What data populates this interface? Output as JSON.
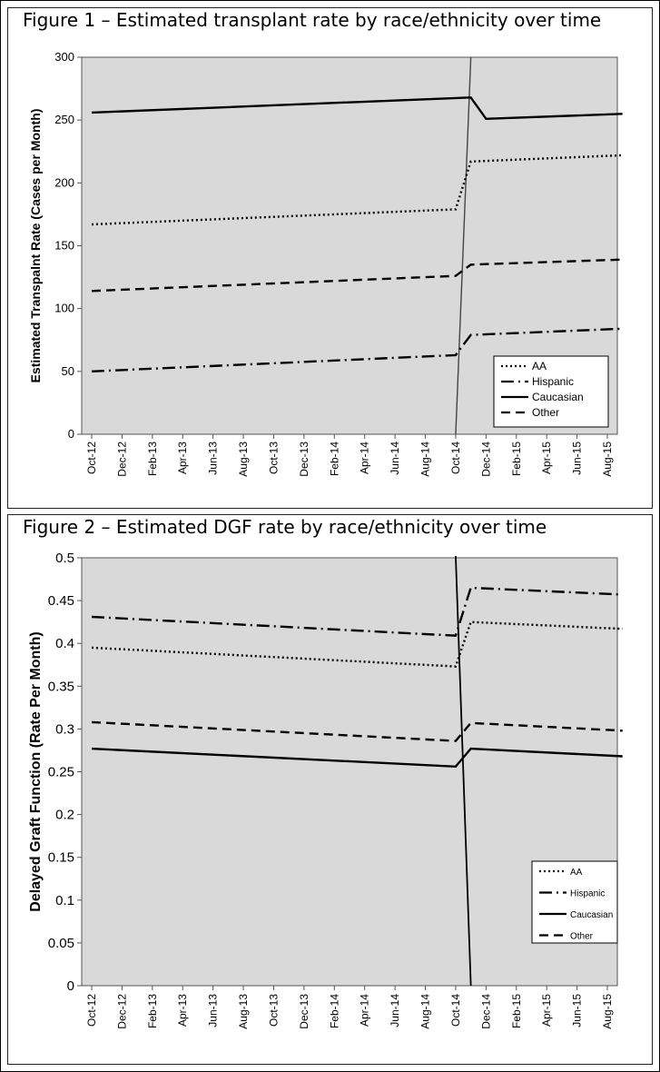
{
  "figures": {
    "fig1_title": "Figure 1 – Estimated transplant rate by race/ethnicity over time",
    "fig2_title": "Figure 2 – Estimated DGF rate by race/ethnicity over time"
  },
  "chart_data": [
    {
      "type": "line",
      "title": "Figure 1 – Estimated transplant rate by race/ethnicity over time",
      "xlabel": "",
      "ylabel": "Estimated Transpalnt Rate (Cases per Month)",
      "x_tick_labels": [
        "Oct-12",
        "Dec-12",
        "Feb-13",
        "Apr-13",
        "Jun-13",
        "Aug-13",
        "Oct-13",
        "Dec-13",
        "Feb-14",
        "Apr-14",
        "Jun-14",
        "Aug-14",
        "Oct-14",
        "Dec-14",
        "Feb-15",
        "Apr-15",
        "Jun-15",
        "Aug-15"
      ],
      "y_ticks": [
        "0",
        "50",
        "100",
        "150",
        "200",
        "250",
        "300"
      ],
      "ylim": [
        0,
        300
      ],
      "grid": false,
      "background": "#d9d9d9",
      "intervention_line": {
        "x_top": "Nov-14",
        "x_bottom": "Oct-14"
      },
      "legend_position": "bottom-right",
      "series": [
        {
          "name": "AA",
          "style": "dotted",
          "points": [
            [
              "Oct-12",
              167
            ],
            [
              "Oct-14",
              179
            ],
            [
              "Nov-14",
              217
            ],
            [
              "Sep-15",
              222
            ]
          ]
        },
        {
          "name": "Hispanic",
          "style": "dash-dot",
          "points": [
            [
              "Oct-12",
              50
            ],
            [
              "Oct-14",
              63
            ],
            [
              "Nov-14",
              79
            ],
            [
              "Sep-15",
              84
            ]
          ]
        },
        {
          "name": "Caucasian",
          "style": "solid",
          "points": [
            [
              "Oct-12",
              256
            ],
            [
              "Nov-14",
              268
            ],
            [
              "Dec-14",
              251
            ],
            [
              "Sep-15",
              255
            ]
          ]
        },
        {
          "name": "Other",
          "style": "dashed",
          "points": [
            [
              "Oct-12",
              114
            ],
            [
              "Oct-14",
              126
            ],
            [
              "Nov-14",
              135
            ],
            [
              "Sep-15",
              139
            ]
          ]
        }
      ]
    },
    {
      "type": "line",
      "title": "Figure 2 – Estimated DGF rate by race/ethnicity over time",
      "xlabel": "",
      "ylabel": "Delayed Graft Function (Rate Per Month)",
      "x_tick_labels": [
        "Oct-12",
        "Dec-12",
        "Feb-13",
        "Apr-13",
        "Jun-13",
        "Aug-13",
        "Oct-13",
        "Dec-13",
        "Feb-14",
        "Apr-14",
        "Jun-14",
        "Aug-14",
        "Oct-14",
        "Dec-14",
        "Feb-15",
        "Apr-15",
        "Jun-15",
        "Aug-15"
      ],
      "y_ticks": [
        "0",
        "0.05",
        "0.1",
        "0.15",
        "0.2",
        "0.25",
        "0.3",
        "0.35",
        "0.4",
        "0.45",
        "0.5"
      ],
      "ylim": [
        0,
        0.5
      ],
      "grid": false,
      "background": "#d9d9d9",
      "intervention_line": {
        "x_top": "Oct-14",
        "x_bottom": "Nov-14"
      },
      "legend_position": "bottom-right",
      "series": [
        {
          "name": "AA",
          "style": "dotted",
          "points": [
            [
              "Oct-12",
              0.395
            ],
            [
              "Oct-14",
              0.373
            ],
            [
              "Nov-14",
              0.425
            ],
            [
              "Sep-15",
              0.417
            ]
          ]
        },
        {
          "name": "Hispanic",
          "style": "dash-dot",
          "points": [
            [
              "Oct-12",
              0.431
            ],
            [
              "Oct-14",
              0.409
            ],
            [
              "Nov-14",
              0.465
            ],
            [
              "Sep-15",
              0.457
            ]
          ]
        },
        {
          "name": "Caucasian",
          "style": "solid",
          "points": [
            [
              "Oct-12",
              0.277
            ],
            [
              "Oct-14",
              0.256
            ],
            [
              "Nov-14",
              0.277
            ],
            [
              "Sep-15",
              0.268
            ]
          ]
        },
        {
          "name": "Other",
          "style": "dashed",
          "points": [
            [
              "Oct-12",
              0.308
            ],
            [
              "Oct-14",
              0.286
            ],
            [
              "Nov-14",
              0.307
            ],
            [
              "Sep-15",
              0.298
            ]
          ]
        }
      ]
    }
  ]
}
